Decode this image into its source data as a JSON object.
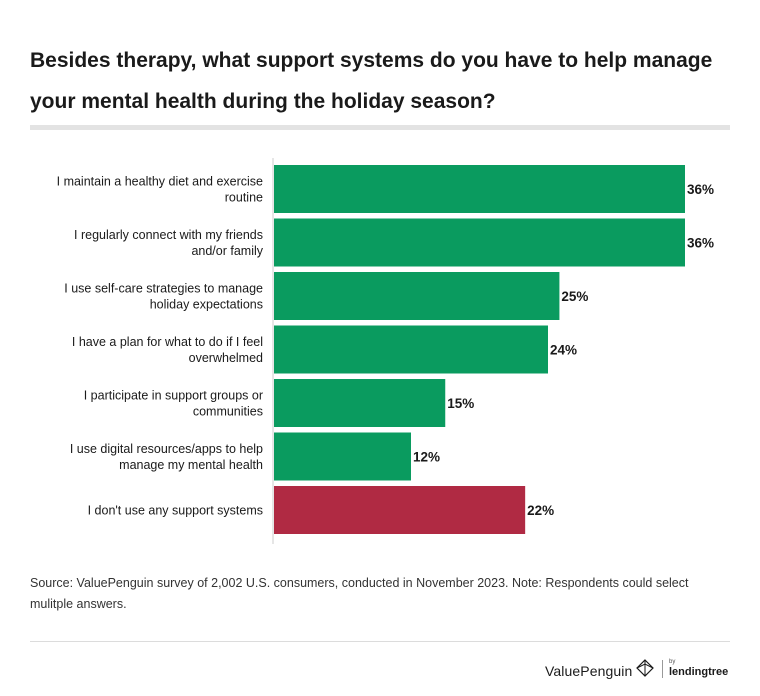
{
  "title": "Besides therapy, what support systems do you have to help manage your mental health during the holiday season?",
  "source": "Source: ValuePenguin survey of 2,002 U.S. consumers, conducted in November 2023. Note: Respondents could select mulitple answers.",
  "brand": {
    "valuepenguin": "ValuePenguin",
    "by": "by",
    "lendingtree": "lendingtree"
  },
  "colors": {
    "primary_bar": "#0a9b5f",
    "highlight_bar": "#b02a43",
    "axis": "#cccccc",
    "title_rule": "#e3e3e3"
  },
  "chart_data": {
    "type": "bar",
    "orientation": "horizontal",
    "title": "Besides therapy, what support systems do you have to help manage your mental health during the holiday season?",
    "xlabel": "",
    "ylabel": "",
    "xlim": [
      0,
      36
    ],
    "grid": false,
    "legend": "none",
    "categories": [
      [
        "I maintain a healthy diet and exercise",
        "routine"
      ],
      [
        "I regularly connect with my friends",
        "and/or family"
      ],
      [
        "I use self-care strategies to manage",
        "holiday expectations"
      ],
      [
        "I have a plan for what to do if I feel",
        "overwhelmed"
      ],
      [
        "I participate in support groups or",
        "communities"
      ],
      [
        "I use digital resources/apps to help",
        "manage my mental health"
      ],
      [
        "I don't use any support systems"
      ]
    ],
    "values": [
      36,
      36,
      25,
      24,
      15,
      12,
      22
    ],
    "value_labels": [
      "36%",
      "36%",
      "25%",
      "24%",
      "15%",
      "12%",
      "22%"
    ],
    "highlight_index": 6
  }
}
